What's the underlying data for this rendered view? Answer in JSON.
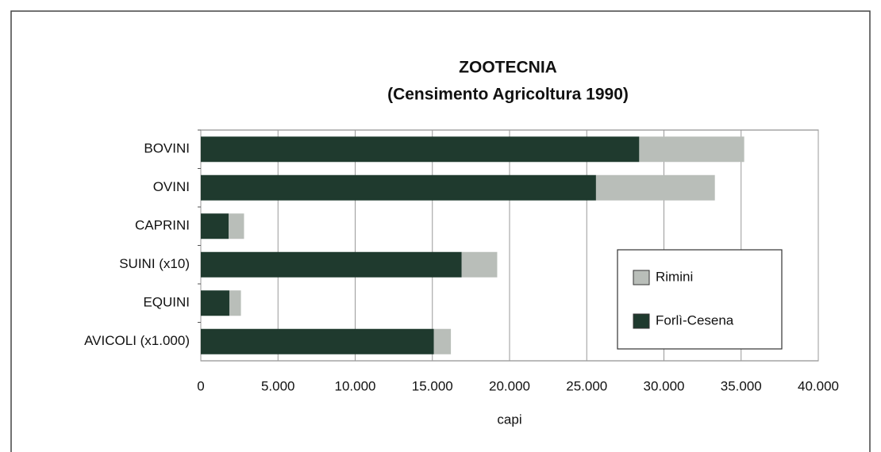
{
  "chart_data": {
    "type": "stacked-barh",
    "title": "ZOOTECNIA",
    "subtitle": "(Censimento Agricoltura 1990)",
    "xlabel": "capi",
    "categories": [
      "BOVINI",
      "OVINI",
      "CAPRINI",
      "SUINI (x10)",
      "EQUINI",
      "AVICOLI (x1.000)"
    ],
    "series": [
      {
        "name": "Forlì-Cesena",
        "color": "#1f3a2e",
        "values": [
          28400,
          25600,
          1800,
          16900,
          1850,
          15100
        ]
      },
      {
        "name": "Rimini",
        "color": "#b9beb9",
        "values": [
          6800,
          7700,
          1000,
          2300,
          750,
          1100
        ]
      }
    ],
    "xlim": [
      0,
      40000
    ],
    "xticks": [
      0,
      {
        "value": 5000,
        "label": "5.000"
      },
      {
        "value": 10000,
        "label": "10.000"
      },
      {
        "value": 15000,
        "label": "15.000"
      },
      {
        "value": 20000,
        "label": "20.000"
      },
      {
        "value": 25000,
        "label": "25.000"
      },
      {
        "value": 30000,
        "label": "30.000"
      },
      {
        "value": 35000,
        "label": "35.000"
      },
      {
        "value": 40000,
        "label": "40.000"
      }
    ],
    "grid": true,
    "legend": "right"
  }
}
